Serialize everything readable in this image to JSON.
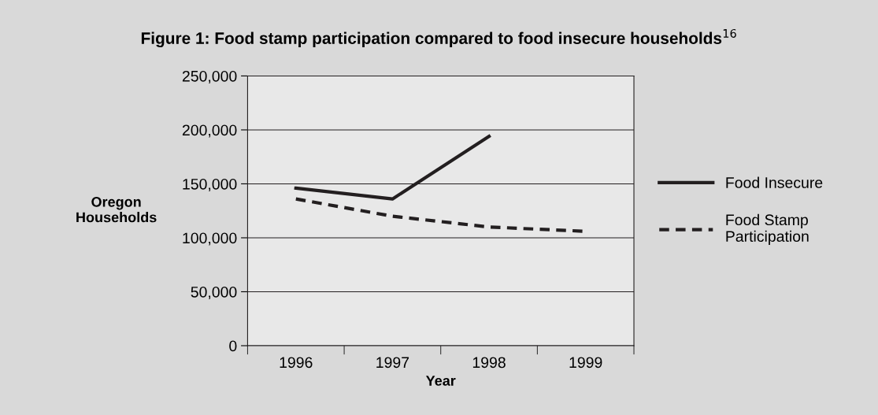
{
  "chart_data": {
    "type": "line",
    "title": "Figure 1: Food stamp participation compared to food insecure households$^{16}$",
    "xlabel": "Year",
    "ylabel": "Oregon\nHouseholds",
    "categories": [
      "1996",
      "1997",
      "1998",
      "1999"
    ],
    "series": [
      {
        "name": "Food Insecure",
        "color": "#231f20",
        "values": [
          146000,
          136000,
          194000,
          null
        ],
        "line_style": "solid"
      },
      {
        "name": "Food Stamp\nParticipation",
        "color": "#231f20",
        "values": [
          136000,
          120000,
          110000,
          106000
        ],
        "line_style": "dashed"
      }
    ],
    "ylim": [
      0,
      250000
    ],
    "yticks": [
      {
        "value": 0,
        "label": "0"
      },
      {
        "value": 50000,
        "label": "50,000"
      },
      {
        "value": 100000,
        "label": "100,000"
      },
      {
        "value": 150000,
        "label": "150,000"
      },
      {
        "value": 200000,
        "label": "200,000"
      },
      {
        "value": 250000,
        "label": "250,000"
      }
    ],
    "grid": "y",
    "legend": "right",
    "marker": "none"
  }
}
